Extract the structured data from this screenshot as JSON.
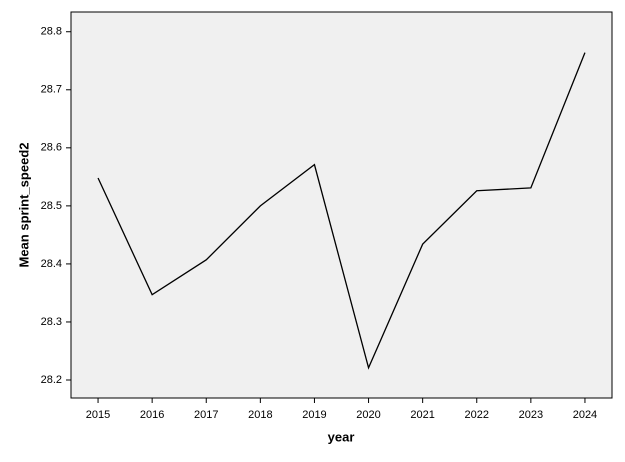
{
  "chart_data": {
    "type": "line",
    "x_label": "year",
    "y_label": "Mean sprint_speed2",
    "categories": [
      "2015",
      "2016",
      "2017",
      "2018",
      "2019",
      "2020",
      "2021",
      "2022",
      "2023",
      "2024"
    ],
    "values": [
      28.548,
      28.347,
      28.407,
      28.5,
      28.571,
      28.221,
      28.434,
      28.526,
      28.531,
      28.764
    ],
    "color": "#000000",
    "ylim": [
      28.169,
      28.834
    ],
    "yticks": [
      28.2,
      28.3,
      28.4,
      28.5,
      28.6,
      28.7,
      28.8
    ],
    "grid": false
  }
}
